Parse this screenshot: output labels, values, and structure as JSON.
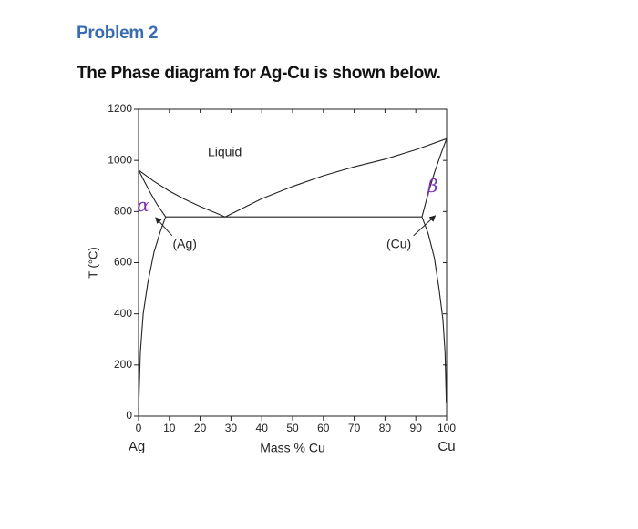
{
  "header": {
    "problem": "Problem 2",
    "statement": "The Phase diagram for Ag-Cu is shown below."
  },
  "chart_data": {
    "type": "line",
    "xlabel": "Mass % Cu",
    "ylabel": "T (°C)",
    "left_element": "Ag",
    "right_element": "Cu",
    "xlim": [
      0,
      100
    ],
    "ylim": [
      0,
      1200
    ],
    "xticks": [
      0,
      10,
      20,
      30,
      40,
      50,
      60,
      70,
      80,
      90,
      100
    ],
    "yticks": [
      0,
      200,
      400,
      600,
      800,
      1000,
      1200
    ],
    "color": "#222222",
    "curves": [
      {
        "x": [
          0,
          5,
          10,
          15,
          20,
          25,
          28.1
        ],
        "values": [
          962,
          918,
          880,
          848,
          820,
          795,
          779
        ]
      },
      {
        "x": [
          28.1,
          40,
          50,
          60,
          70,
          80,
          90,
          100
        ],
        "values": [
          779,
          850,
          898,
          940,
          975,
          1005,
          1042,
          1085
        ]
      },
      {
        "x": [
          0,
          2,
          4,
          6,
          8.8
        ],
        "values": [
          962,
          915,
          870,
          828,
          779
        ]
      },
      {
        "x": [
          100,
          98,
          96,
          94,
          92
        ],
        "values": [
          1085,
          1020,
          950,
          870,
          779
        ]
      },
      {
        "x": [
          8.8,
          92
        ],
        "values": [
          779,
          779
        ]
      },
      {
        "x": [
          8.8,
          7,
          5,
          3,
          1.5,
          0.6,
          0.1
        ],
        "values": [
          779,
          720,
          640,
          520,
          400,
          250,
          50
        ]
      },
      {
        "x": [
          92,
          94,
          96,
          97.5,
          98.8,
          99.5,
          99.9
        ],
        "values": [
          779,
          715,
          620,
          500,
          380,
          250,
          50
        ]
      }
    ],
    "annotations": [
      {
        "text": "Liquid",
        "x": 28,
        "y": 1030,
        "color": "#222222"
      },
      {
        "text": "(Ag)",
        "x": 15,
        "y": 670,
        "color": "#222222"
      },
      {
        "text": "(Cu)",
        "x": 84.5,
        "y": 670,
        "color": "#222222"
      },
      {
        "text": "α",
        "x": 1.5,
        "y": 820,
        "color": "#7a2fb0"
      },
      {
        "text": "β",
        "x": 95.5,
        "y": 895,
        "color": "#7a2fb0"
      }
    ]
  }
}
